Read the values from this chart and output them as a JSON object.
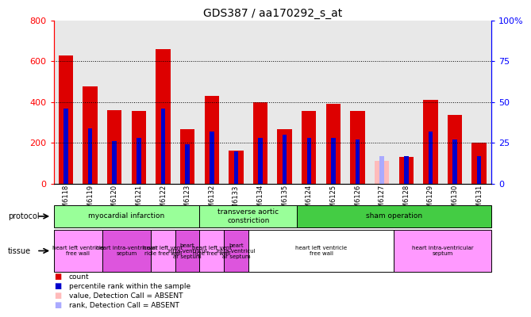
{
  "title": "GDS387 / aa170292_s_at",
  "samples": [
    "GSM6118",
    "GSM6119",
    "GSM6120",
    "GSM6121",
    "GSM6122",
    "GSM6123",
    "GSM6132",
    "GSM6133",
    "GSM6134",
    "GSM6135",
    "GSM6124",
    "GSM6125",
    "GSM6126",
    "GSM6127",
    "GSM6128",
    "GSM6129",
    "GSM6130",
    "GSM6131"
  ],
  "counts": [
    630,
    478,
    360,
    355,
    660,
    268,
    430,
    163,
    400,
    268,
    355,
    393,
    355,
    0,
    130,
    410,
    338,
    200
  ],
  "ranks_pct": [
    46,
    34,
    26,
    28,
    46,
    24,
    32,
    20,
    28,
    30,
    28,
    28,
    27,
    0,
    17,
    32,
    27,
    17
  ],
  "absent_count": [
    0,
    0,
    0,
    0,
    0,
    0,
    0,
    0,
    0,
    0,
    0,
    0,
    0,
    110,
    0,
    0,
    0,
    0
  ],
  "absent_rank_pct": [
    0,
    0,
    0,
    0,
    0,
    0,
    0,
    0,
    0,
    0,
    0,
    0,
    0,
    17,
    0,
    0,
    0,
    0
  ],
  "absent_flag": [
    false,
    false,
    false,
    false,
    false,
    false,
    false,
    false,
    false,
    false,
    false,
    false,
    false,
    true,
    false,
    false,
    false,
    false
  ],
  "ylim_left": [
    0,
    800
  ],
  "ylim_right": [
    0,
    100
  ],
  "yticks_left": [
    0,
    200,
    400,
    600,
    800
  ],
  "yticks_right": [
    0,
    25,
    50,
    75,
    100
  ],
  "bar_color_red": "#dd0000",
  "bar_color_pink": "#ffbbbb",
  "rank_color_blue": "#0000cc",
  "rank_color_lightblue": "#aaaaff",
  "grid_lines": [
    200,
    400,
    600
  ],
  "prot_data": [
    {
      "start": 0,
      "end": 6,
      "color": "#99ff99",
      "label": "myocardial infarction"
    },
    {
      "start": 6,
      "end": 10,
      "color": "#99ff99",
      "label": "transverse aortic\nconstriction"
    },
    {
      "start": 10,
      "end": 18,
      "color": "#44cc44",
      "label": "sham operation"
    }
  ],
  "tis_data": [
    {
      "start": 0,
      "end": 2,
      "color": "#ff99ff",
      "label": "heart left ventricle\nfree wall"
    },
    {
      "start": 2,
      "end": 4,
      "color": "#dd55dd",
      "label": "heart intra-ventricular\nseptum"
    },
    {
      "start": 4,
      "end": 5,
      "color": "#ff99ff",
      "label": "heart left vent\nricle free wall"
    },
    {
      "start": 5,
      "end": 6,
      "color": "#dd55dd",
      "label": "heart\nintra-ventricul\nar septum"
    },
    {
      "start": 6,
      "end": 7,
      "color": "#ff99ff",
      "label": "heart left vent\nricle free wall"
    },
    {
      "start": 7,
      "end": 8,
      "color": "#dd55dd",
      "label": "heart\nintra-ventricul\nar septum"
    },
    {
      "start": 8,
      "end": 14,
      "color": "#ffffff",
      "label": "heart left ventricle\nfree wall"
    },
    {
      "start": 14,
      "end": 18,
      "color": "#ff99ff",
      "label": "heart intra-ventricular\nseptum"
    }
  ]
}
